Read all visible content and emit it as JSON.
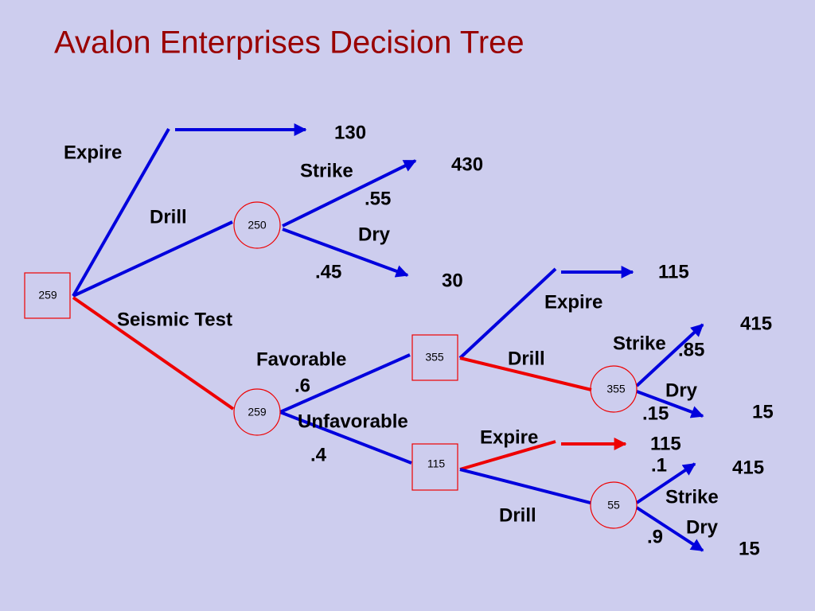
{
  "title": "Avalon Enterprises Decision Tree",
  "nodes": [
    {
      "label": "259"
    },
    {
      "label": "250"
    },
    {
      "label": "259"
    },
    {
      "label": "355"
    },
    {
      "label": "115"
    },
    {
      "label": "355"
    },
    {
      "label": "55"
    }
  ],
  "branch_labels": [
    "Expire",
    "Drill",
    "Seismic Test",
    "Strike",
    "Dry",
    "Favorable",
    "Unfavorable",
    "Expire",
    "Drill",
    "Strike",
    "Dry",
    "Expire",
    "Drill",
    "Strike",
    "Dry"
  ],
  "probabilities": [
    ".55",
    ".45",
    ".6",
    ".4",
    ".85",
    ".15",
    ".1",
    ".9"
  ],
  "payoffs": [
    "130",
    "430",
    "30",
    "115",
    "415",
    "15",
    "115",
    "415",
    "15"
  ]
}
